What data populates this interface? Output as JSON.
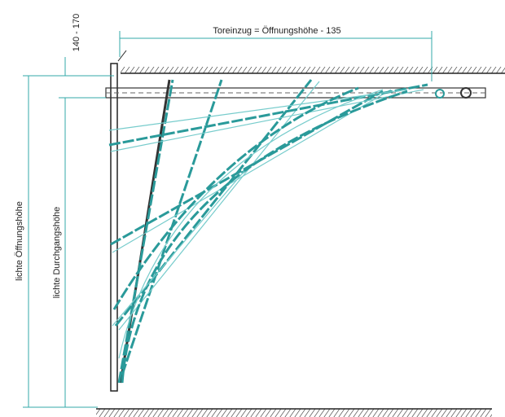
{
  "dimensions": {
    "toreinzug": "Toreinzug = Öffnungshöhe - 135",
    "offset": "140 - 170",
    "opening_height": "lichte Öffnungshöhe",
    "passage_height": "lichte Durchgangshöhe"
  }
}
